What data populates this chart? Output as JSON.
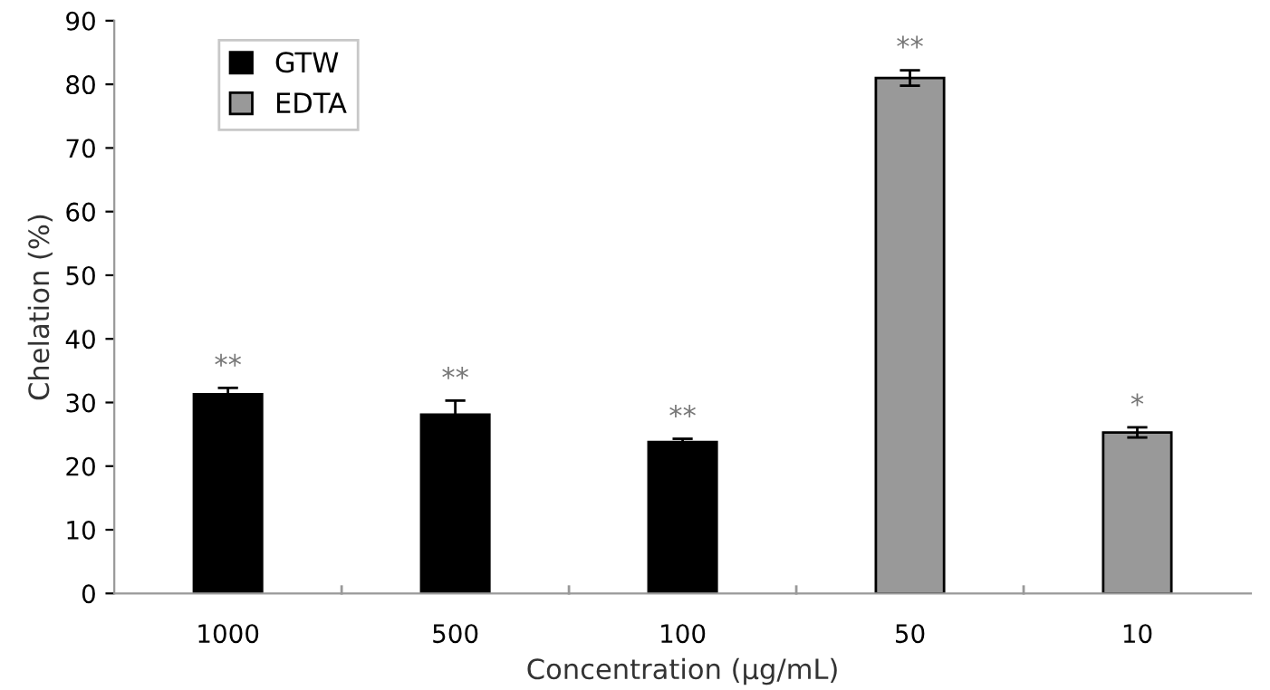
{
  "chart_data": {
    "type": "bar",
    "xlabel": "Concentration (µg/mL)",
    "ylabel": "Chelation (%)",
    "categories": [
      "1000",
      "500",
      "100",
      "50",
      "10"
    ],
    "series": [
      {
        "name": "GTW",
        "color": "#000000",
        "values": [
          31.3,
          28.1,
          23.8,
          null,
          null
        ],
        "errors": [
          1.0,
          2.2,
          0.5,
          null,
          null
        ]
      },
      {
        "name": "EDTA",
        "color": "#999999",
        "values": [
          null,
          null,
          null,
          81.0,
          25.3
        ],
        "errors": [
          null,
          null,
          null,
          1.2,
          0.8
        ]
      }
    ],
    "annotations": [
      {
        "text": "**",
        "x": "1000",
        "y": 33.5
      },
      {
        "text": "**",
        "x": "500",
        "y": 31.5
      },
      {
        "text": "**",
        "x": "100",
        "y": 25.5
      },
      {
        "text": "**",
        "x": "50",
        "y": 83.5
      },
      {
        "text": "*",
        "x": "10",
        "y": 27.3
      }
    ],
    "ylim": [
      0,
      90
    ],
    "yticks": [
      0,
      10,
      20,
      30,
      40,
      50,
      60,
      70,
      80,
      90
    ],
    "grid": false,
    "legend": "top left"
  }
}
